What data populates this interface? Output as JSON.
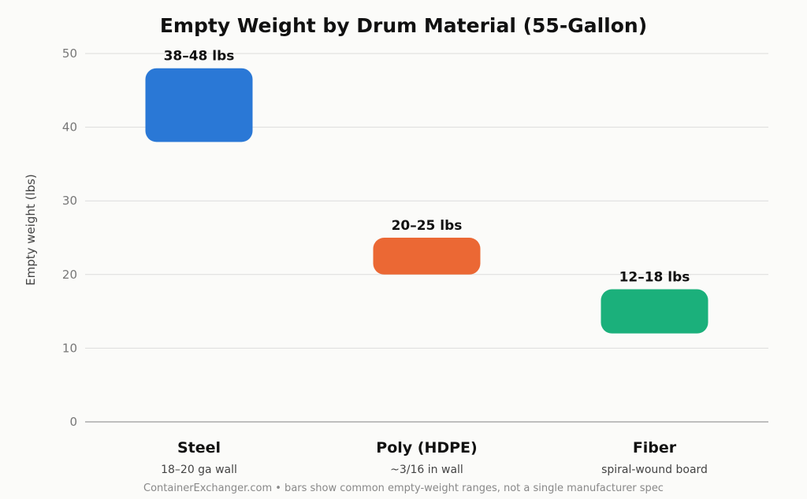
{
  "chart_data": {
    "type": "bar",
    "subtype": "floating-range",
    "title": "Empty Weight by Drum Material (55-Gallon)",
    "xlabel": "",
    "ylabel": "Empty weight (lbs)",
    "ylim": [
      0,
      50
    ],
    "yticks": [
      0,
      10,
      20,
      30,
      40,
      50
    ],
    "grid": true,
    "categories": [
      "Steel",
      "Poly (HDPE)",
      "Fiber"
    ],
    "subtitles": [
      "18–20 ga wall",
      "~3/16 in wall",
      "spiral-wound board"
    ],
    "ranges": [
      [
        38,
        48
      ],
      [
        20,
        25
      ],
      [
        12,
        18
      ]
    ],
    "labels": [
      "38–48 lbs",
      "20–25 lbs",
      "12–18 lbs"
    ],
    "colors": [
      "#2a78d6",
      "#eb6834",
      "#1bb07b"
    ],
    "footnote": "ContainerExchanger.com • bars show common empty-weight ranges, not a single manufacturer spec"
  }
}
